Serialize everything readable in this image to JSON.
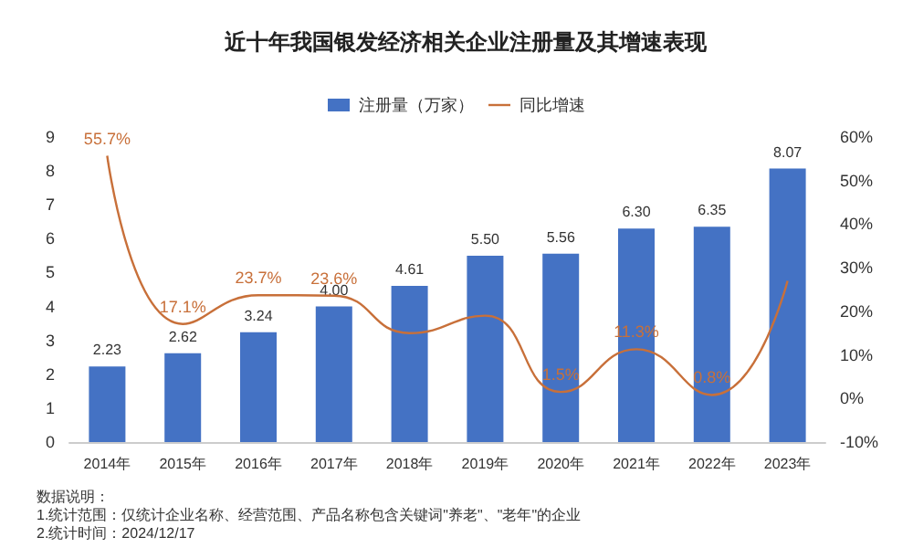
{
  "chart_data": {
    "type": "bar",
    "title": "近十年我国银发经济相关企业注册量及其增速表现",
    "categories": [
      "2014年",
      "2015年",
      "2016年",
      "2017年",
      "2018年",
      "2019年",
      "2020年",
      "2021年",
      "2022年",
      "2023年"
    ],
    "series": [
      {
        "name": "注册量（万家）",
        "color": "#4472c4",
        "values": [
          2.23,
          2.62,
          3.24,
          4.0,
          4.61,
          5.5,
          5.56,
          6.3,
          6.35,
          8.07
        ],
        "value_labels": [
          "2.23",
          "2.62",
          "3.24",
          "4.00",
          "4.61",
          "5.50",
          "5.56",
          "6.30",
          "6.35",
          "8.07"
        ]
      },
      {
        "name": "同比增速",
        "type": "line",
        "axis": "y2",
        "color": "#c8703a",
        "values": [
          55.7,
          17.1,
          23.7,
          23.6,
          15,
          19,
          1.5,
          11.3,
          0.8,
          27
        ],
        "value_labels": [
          "55.7%",
          "17.1%",
          "23.7%",
          "23.6%",
          null,
          null,
          "1.5%",
          "11.3%",
          "0.8%",
          null
        ]
      }
    ],
    "ylim": [
      0,
      9
    ],
    "yticks": [
      0,
      1,
      2,
      3,
      4,
      5,
      6,
      7,
      8,
      9
    ],
    "y2lim": [
      -10,
      60
    ],
    "y2ticks": [
      {
        "value": -10,
        "label": "-10%"
      },
      {
        "value": 0,
        "label": "0%"
      },
      {
        "value": 10,
        "label": "10%"
      },
      {
        "value": 20,
        "label": "20%"
      },
      {
        "value": 30,
        "label": "30%"
      },
      {
        "value": 40,
        "label": "40%"
      },
      {
        "value": 50,
        "label": "50%"
      },
      {
        "value": 60,
        "label": "60%"
      }
    ],
    "legend": "top",
    "grid": false,
    "marker": "none",
    "line_style": "solid",
    "annotations": [
      "数据说明：",
      "1.统计范围：仅统计企业名称、经营范围、产品名称包含关键词\"养老\"、\"老年\"的企业",
      "2.统计时间：2024/12/17"
    ]
  }
}
